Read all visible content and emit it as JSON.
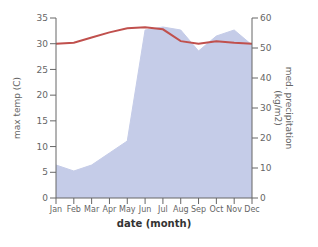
{
  "chart_data": {
    "type": "line",
    "xlabel": "date (month)",
    "ylabel": "max temp (C)",
    "y2label": "med. precipitation\n(kg/m2)",
    "categories": [
      "Jan",
      "Feb",
      "Mar",
      "Apr",
      "May",
      "Jun",
      "Jul",
      "Aug",
      "Sep",
      "Oct",
      "Nov",
      "Dec"
    ],
    "series": [
      {
        "type": "area",
        "axis": "y2",
        "color": "#c5cce8",
        "values": [
          11,
          9,
          11,
          15,
          19,
          56,
          57,
          56,
          49,
          54,
          56,
          51
        ]
      },
      {
        "type": "line",
        "color": "#c0504d",
        "values": [
          30.0,
          30.2,
          31.2,
          32.2,
          33.0,
          33.2,
          32.8,
          30.5,
          30.0,
          30.5,
          30.2,
          30.0
        ]
      }
    ],
    "ylim": [
      0,
      35
    ],
    "yticks": [
      0,
      5,
      10,
      15,
      20,
      25,
      30,
      35
    ],
    "y2lim": [
      0,
      60
    ],
    "y2ticks": [
      0,
      10,
      20,
      30,
      40,
      50,
      60
    ],
    "grid": false
  }
}
